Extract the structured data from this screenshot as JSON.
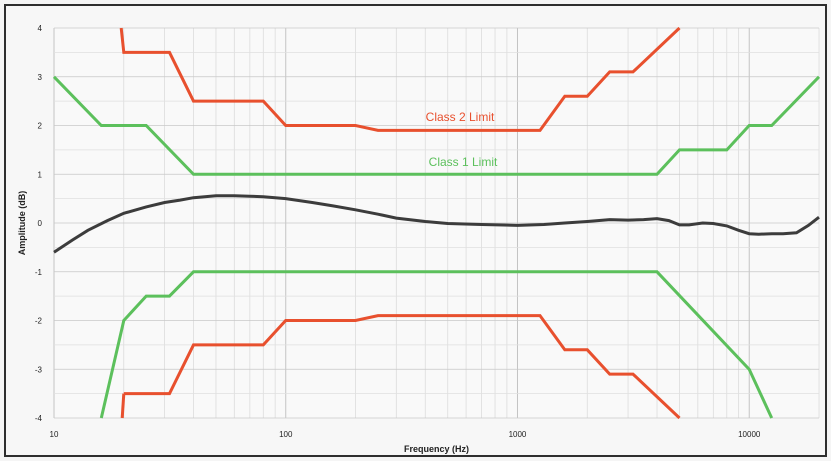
{
  "chart_data": {
    "type": "line",
    "title": "",
    "xlabel": "Frequency (Hz)",
    "ylabel": "Amplitude (dB)",
    "x_scale": "log",
    "xlim": [
      10,
      20000
    ],
    "ylim": [
      -4,
      4
    ],
    "grid": true,
    "x_tick_values": [
      10,
      100,
      1000,
      10000
    ],
    "x_tick_labels": [
      "10",
      "100",
      "1000",
      "10000"
    ],
    "y_tick_values": [
      4,
      3,
      2,
      1,
      0,
      -1,
      -2,
      -3,
      -4
    ],
    "y_tick_labels": [
      "4",
      "3",
      "2",
      "1",
      "0",
      "-1",
      "-2",
      "-3",
      "-4"
    ],
    "series": [
      {
        "name": "Class 2 Limit",
        "color": "#e8502e",
        "annotated": true,
        "segments": [
          [
            [
              19.5,
              4.0
            ],
            [
              20,
              3.5
            ],
            [
              31.5,
              3.5
            ],
            [
              40,
              2.5
            ],
            [
              80,
              2.5
            ],
            [
              100,
              2.0
            ],
            [
              200,
              2.0
            ],
            [
              250,
              1.9
            ],
            [
              1250,
              1.9
            ],
            [
              1600,
              2.6
            ],
            [
              2000,
              2.6
            ],
            [
              2500,
              3.1
            ],
            [
              3150,
              3.1
            ],
            [
              5000,
              4.0
            ]
          ],
          [
            [
              20,
              -3.5
            ],
            [
              31.5,
              -3.5
            ],
            [
              40,
              -2.5
            ],
            [
              80,
              -2.5
            ],
            [
              100,
              -2.0
            ],
            [
              200,
              -2.0
            ],
            [
              250,
              -1.9
            ],
            [
              1250,
              -1.9
            ],
            [
              1600,
              -2.6
            ],
            [
              2000,
              -2.6
            ],
            [
              2500,
              -3.1
            ],
            [
              3150,
              -3.1
            ],
            [
              5000,
              -4.0
            ]
          ],
          [
            [
              19.7,
              -4.0
            ],
            [
              20,
              -3.5
            ]
          ]
        ]
      },
      {
        "name": "Class 1 Limit",
        "color": "#5cc05c",
        "annotated": true,
        "segments": [
          [
            [
              10,
              3.0
            ],
            [
              16,
              2.0
            ],
            [
              25,
              2.0
            ],
            [
              40,
              1.0
            ],
            [
              4000,
              1.0
            ],
            [
              5000,
              1.5
            ],
            [
              8000,
              1.5
            ],
            [
              10000,
              2.0
            ],
            [
              12500,
              2.0
            ],
            [
              20000,
              3.0
            ]
          ],
          [
            [
              16,
              -4.0
            ],
            [
              20,
              -2.0
            ],
            [
              25,
              -1.5
            ],
            [
              31.5,
              -1.5
            ],
            [
              40,
              -1.0
            ],
            [
              4000,
              -1.0
            ],
            [
              10000,
              -3.0
            ],
            [
              12500,
              -4.0
            ]
          ]
        ]
      },
      {
        "name": "",
        "color": "#3c3c3c",
        "annotated": false,
        "segments": [
          [
            [
              10,
              -0.6
            ],
            [
              12,
              -0.35
            ],
            [
              14,
              -0.15
            ],
            [
              17,
              0.05
            ],
            [
              20,
              0.2
            ],
            [
              25,
              0.33
            ],
            [
              30,
              0.42
            ],
            [
              35,
              0.47
            ],
            [
              40,
              0.52
            ],
            [
              50,
              0.56
            ],
            [
              60,
              0.56
            ],
            [
              70,
              0.55
            ],
            [
              80,
              0.54
            ],
            [
              100,
              0.5
            ],
            [
              130,
              0.42
            ],
            [
              160,
              0.35
            ],
            [
              200,
              0.27
            ],
            [
              250,
              0.18
            ],
            [
              300,
              0.1
            ],
            [
              400,
              0.03
            ],
            [
              500,
              -0.01
            ],
            [
              700,
              -0.03
            ],
            [
              1000,
              -0.05
            ],
            [
              1300,
              -0.03
            ],
            [
              1600,
              0.0
            ],
            [
              2000,
              0.03
            ],
            [
              2500,
              0.07
            ],
            [
              3000,
              0.06
            ],
            [
              3500,
              0.07
            ],
            [
              4000,
              0.09
            ],
            [
              4500,
              0.05
            ],
            [
              5000,
              -0.04
            ],
            [
              5500,
              -0.04
            ],
            [
              6300,
              0.0
            ],
            [
              7000,
              -0.01
            ],
            [
              8000,
              -0.06
            ],
            [
              9000,
              -0.15
            ],
            [
              10000,
              -0.22
            ],
            [
              11000,
              -0.23
            ],
            [
              12500,
              -0.22
            ],
            [
              14000,
              -0.22
            ],
            [
              16000,
              -0.2
            ],
            [
              18000,
              -0.05
            ],
            [
              20000,
              0.12
            ]
          ]
        ]
      }
    ]
  }
}
